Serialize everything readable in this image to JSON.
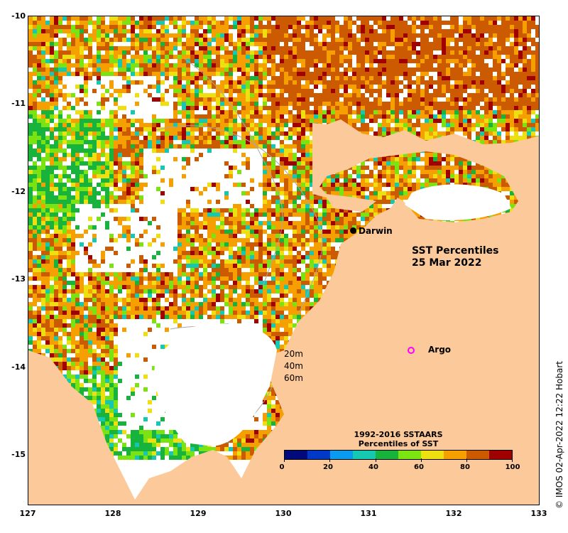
{
  "map": {
    "title_line1": "SST Percentiles",
    "title_line2": "25 Mar 2022",
    "lon_ticks": [
      "127",
      "128",
      "129",
      "130",
      "131",
      "132",
      "133"
    ],
    "lat_ticks": [
      "-10",
      "-11",
      "-12",
      "-13",
      "-14",
      "-15"
    ],
    "places": {
      "darwin": "Darwin",
      "argo": "Argo"
    },
    "depth_labels": [
      "20m",
      "40m",
      "60m"
    ],
    "legend": {
      "title_line1": "1992-2016 SSTAARS",
      "title_line2": "Percentiles of SST",
      "ticks": [
        "0",
        "20",
        "40",
        "60",
        "80",
        "100"
      ],
      "colors": [
        "#000a7a",
        "#0038c8",
        "#0a9af0",
        "#16c8b2",
        "#18b33c",
        "#7ce312",
        "#eee010",
        "#f5a000",
        "#cc5a00",
        "#a00000"
      ]
    },
    "land_color": "#fcc99a",
    "argo_color": "#ff00ff",
    "credit": "© IMOS 02-Apr-2022 12:22 Hobart"
  }
}
